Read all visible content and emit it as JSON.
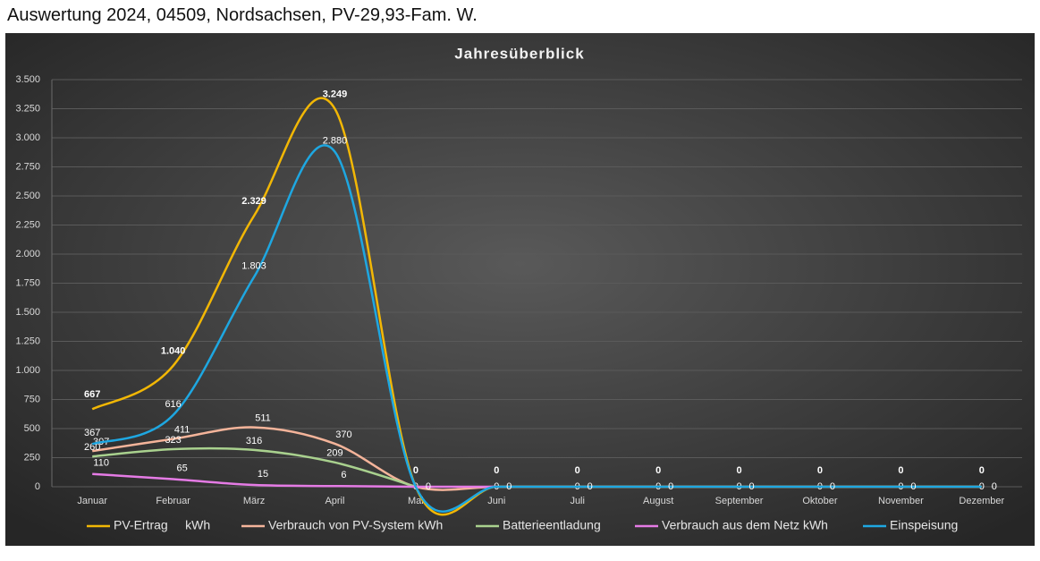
{
  "page_title": "Auswertung 2024, 04509, Nordsachsen, PV-29,93-Fam. W.",
  "chart_data": {
    "type": "line",
    "title": "Jahresüberblick",
    "smooth": true,
    "grid": true,
    "legend": "bottom",
    "categories": [
      "Januar",
      "Februar",
      "März",
      "April",
      "Mai",
      "Juni",
      "Juli",
      "August",
      "September",
      "Oktober",
      "November",
      "Dezember"
    ],
    "ylim": [
      0,
      3500
    ],
    "yticks": [
      0,
      250,
      500,
      750,
      {
        "value": 1000,
        "label": "1.000"
      },
      {
        "value": 1250,
        "label": "1.250"
      },
      {
        "value": 1500,
        "label": "1.500"
      },
      {
        "value": 1750,
        "label": "1.750"
      },
      {
        "value": 2000,
        "label": "2.000"
      },
      {
        "value": 2250,
        "label": "2.250"
      },
      {
        "value": 2500,
        "label": "2.500"
      },
      {
        "value": 2750,
        "label": "2.750"
      },
      {
        "value": 3000,
        "label": "3.000"
      },
      {
        "value": 3250,
        "label": "3.250"
      },
      {
        "value": 3500,
        "label": "3.500"
      }
    ],
    "series": [
      {
        "name": "PV-Ertrag     kWh",
        "color": "#f2b705",
        "values": [
          667,
          1040,
          2329,
          3249,
          0,
          0,
          0,
          0,
          0,
          0,
          0,
          0
        ],
        "value_labels": [
          "667",
          "1.040",
          "2.329",
          "3.249",
          "0",
          "0",
          "0",
          "0",
          "0",
          "0",
          "0",
          "0"
        ]
      },
      {
        "name": "Verbrauch von PV-System kWh",
        "color": "#f4b49a",
        "values": [
          307,
          411,
          511,
          370,
          0,
          0,
          0,
          0,
          0,
          0,
          0,
          0
        ],
        "value_labels": [
          "307",
          "411",
          "511",
          "370",
          "0",
          "0",
          "0",
          "0",
          "0",
          "0",
          "0",
          "0"
        ]
      },
      {
        "name": "Batterieentladung",
        "color": "#a9d18e",
        "values": [
          260,
          323,
          316,
          209,
          0,
          null,
          null,
          null,
          null,
          null,
          null,
          null
        ],
        "value_labels": [
          "260",
          "323",
          "316",
          "209",
          null,
          null,
          null,
          null,
          null,
          null,
          null,
          null
        ]
      },
      {
        "name": "Verbrauch aus dem Netz kWh",
        "color": "#e57be5",
        "values": [
          110,
          65,
          15,
          6,
          0,
          0,
          null,
          null,
          null,
          null,
          null,
          null
        ],
        "value_labels": [
          "110",
          "65",
          "15",
          "6",
          null,
          null,
          null,
          null,
          null,
          null,
          null,
          null
        ]
      },
      {
        "name": "Einspeisung",
        "color": "#1ea7e1",
        "values": [
          367,
          616,
          1803,
          2880,
          0,
          0,
          0,
          0,
          0,
          0,
          0,
          0
        ],
        "value_labels": [
          "367",
          "616",
          "1.803",
          "2.880",
          "0",
          "0",
          "0",
          "0",
          "0",
          "0",
          "0",
          "0"
        ]
      }
    ]
  }
}
